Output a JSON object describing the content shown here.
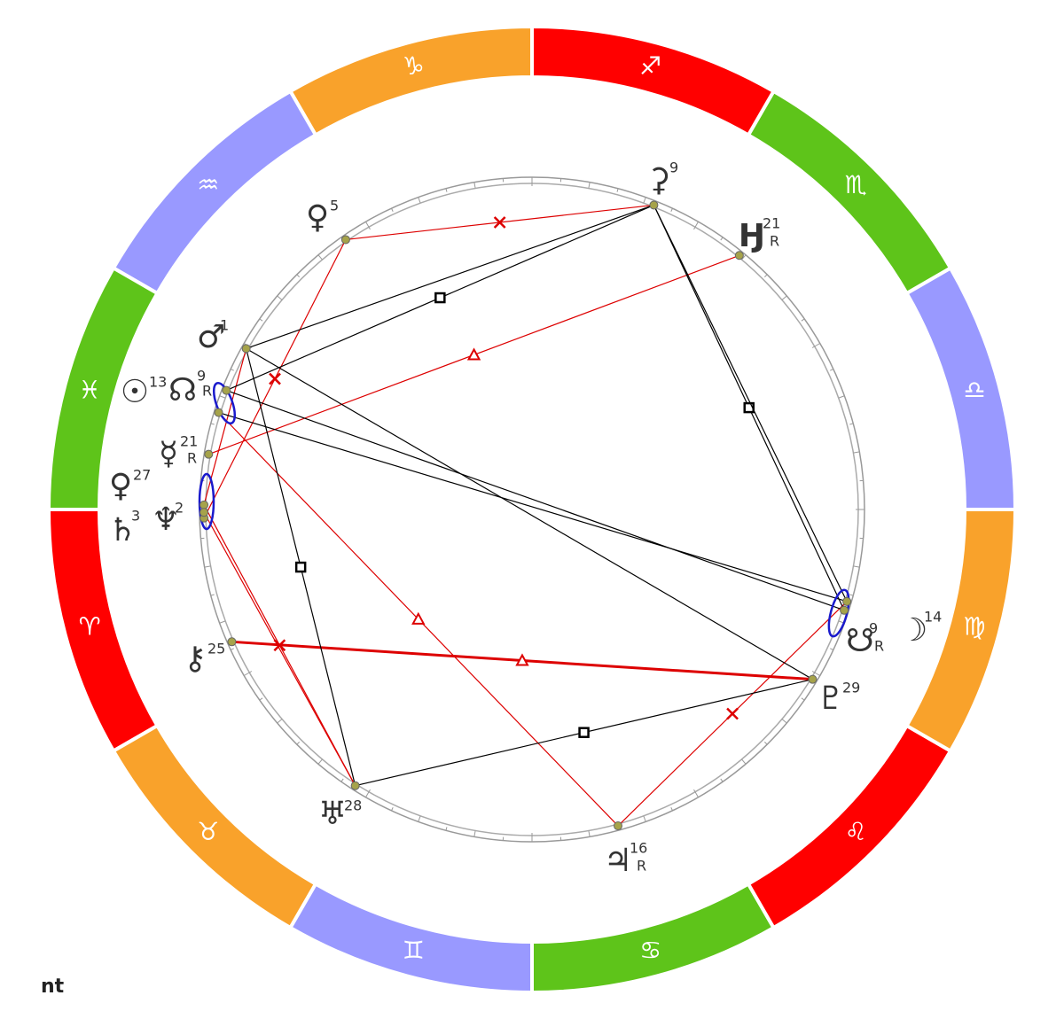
{
  "signs": [
    {
      "glyph": "♎"
    },
    {
      "glyph": "♏"
    },
    {
      "glyph": "♐"
    },
    {
      "glyph": "♑"
    },
    {
      "glyph": "♒"
    },
    {
      "glyph": "♓"
    },
    {
      "glyph": "♈"
    },
    {
      "glyph": "♉"
    },
    {
      "glyph": "♊"
    },
    {
      "glyph": "♋"
    },
    {
      "glyph": "♌"
    },
    {
      "glyph": "♍"
    }
  ],
  "planets": [
    {
      "glyph": "⚳",
      "degree": 9
    },
    {
      "glyph": "♀",
      "degree": 5
    },
    {
      "glyph": "Ӈ",
      "degree": 21,
      "retrograde": "R"
    },
    {
      "glyph": "♂",
      "degree": 1
    },
    {
      "glyph": "☉",
      "degree": 13
    },
    {
      "glyph": "☊",
      "degree": 9,
      "retrograde": "R"
    },
    {
      "glyph": "☿",
      "degree": 21,
      "retrograde": "R"
    },
    {
      "glyph": "♀",
      "degree": 27
    },
    {
      "glyph": "♄",
      "degree": 3
    },
    {
      "glyph": "♆",
      "degree": 2
    },
    {
      "glyph": "⚷",
      "degree": 25
    },
    {
      "glyph": "♅",
      "degree": 28
    },
    {
      "glyph": "♃",
      "degree": 16,
      "retrograde": "R"
    },
    {
      "glyph": "♇",
      "degree": 29
    },
    {
      "glyph": "☋",
      "degree": 9,
      "retrograde": "R"
    },
    {
      "glyph": "☽",
      "degree": 14
    }
  ],
  "footer": "nt"
}
